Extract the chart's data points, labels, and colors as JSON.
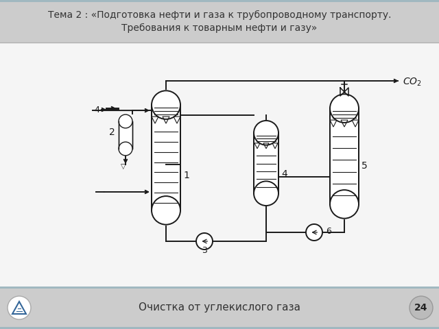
{
  "title_line1": "Тема 2 : «Подготовка нефти и газа к трубопроводному транспорту.",
  "title_line2": "Требования к товарным нефти и газу»",
  "footer_text": "Очистка от углекислого газа",
  "slide_number": "24",
  "bg_color": "#d8d8d8",
  "title_bg_top": "#c8c8c8",
  "title_bg_bot": "#d8d8d8",
  "footer_bg": "#d0d0d0",
  "diagram_bg": "#f0f0f0",
  "line_color": "#1a1a1a",
  "fill_color": "#ffffff",
  "title_fontsize": 10,
  "footer_fontsize": 11,
  "num_fontsize": 9,
  "co2_fontsize": 10,
  "accent_color": "#4a90c0"
}
